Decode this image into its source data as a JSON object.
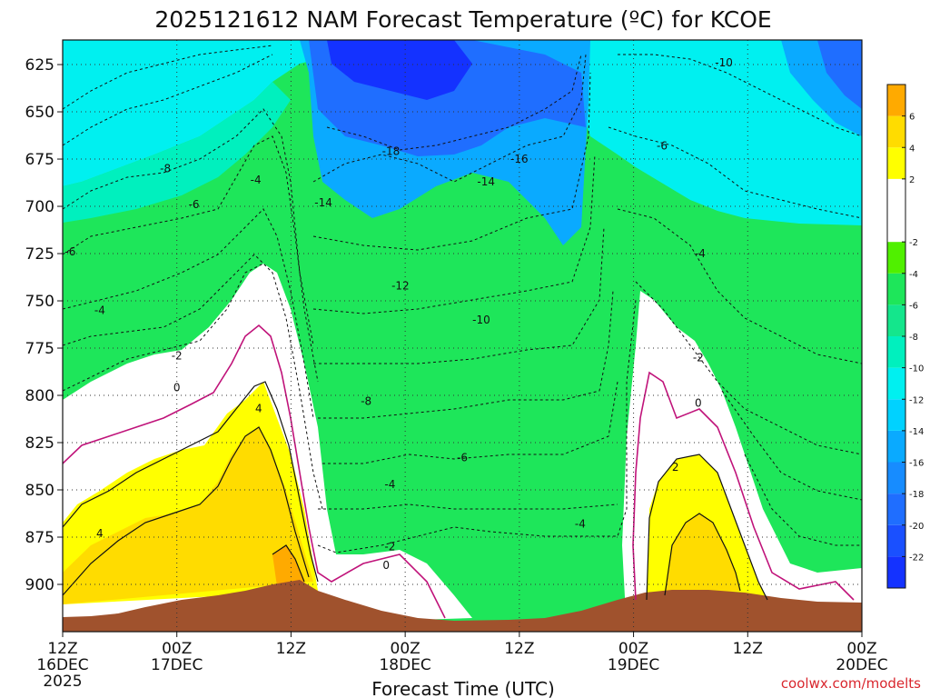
{
  "chart_data": {
    "type": "heatmap",
    "title": "2025121612 NAM Forecast Temperature (ºC) for KCOE",
    "xlabel": "Forecast Time (UTC)",
    "ylabel": "",
    "x_ticks": [
      {
        "hour": 0,
        "line1": "12Z",
        "line2": "16DEC",
        "line3": "2025"
      },
      {
        "hour": 12,
        "line1": "00Z",
        "line2": "17DEC",
        "line3": ""
      },
      {
        "hour": 24,
        "line1": "12Z",
        "line2": "",
        "line3": ""
      },
      {
        "hour": 36,
        "line1": "00Z",
        "line2": "18DEC",
        "line3": ""
      },
      {
        "hour": 48,
        "line1": "12Z",
        "line2": "",
        "line3": ""
      },
      {
        "hour": 60,
        "line1": "00Z",
        "line2": "19DEC",
        "line3": ""
      },
      {
        "hour": 72,
        "line1": "12Z",
        "line2": "",
        "line3": ""
      },
      {
        "hour": 84,
        "line1": "00Z",
        "line2": "20DEC",
        "line3": ""
      }
    ],
    "xlim_hours": [
      0,
      84
    ],
    "y_ticks": [
      625,
      650,
      675,
      700,
      725,
      750,
      775,
      800,
      825,
      850,
      875,
      900
    ],
    "ylim_hpa": [
      612,
      925
    ],
    "grid": true,
    "colorbar": {
      "placement": "right",
      "bands": [
        {
          "lo": -24,
          "hi": -22,
          "color": "#1432ff"
        },
        {
          "lo": -22,
          "hi": -20,
          "color": "#1a50ff"
        },
        {
          "lo": -20,
          "hi": -18,
          "color": "#1f6eff"
        },
        {
          "lo": -18,
          "hi": -16,
          "color": "#178cff"
        },
        {
          "lo": -16,
          "hi": -14,
          "color": "#0aaaff"
        },
        {
          "lo": -14,
          "hi": -12,
          "color": "#00d2ff"
        },
        {
          "lo": -12,
          "hi": -10,
          "color": "#00f0f0"
        },
        {
          "lo": -10,
          "hi": -8,
          "color": "#00f0be"
        },
        {
          "lo": -8,
          "hi": -6,
          "color": "#14e68c"
        },
        {
          "lo": -6,
          "hi": -4,
          "color": "#1ee65a"
        },
        {
          "lo": -4,
          "hi": -2,
          "color": "#50f000"
        },
        {
          "lo": -2,
          "hi": 2,
          "color": "#ffffff"
        },
        {
          "lo": 2,
          "hi": 4,
          "color": "#ffff00"
        },
        {
          "lo": 4,
          "hi": 6,
          "color": "#ffdc00"
        },
        {
          "lo": 6,
          "hi": 8,
          "color": "#ffaa00"
        }
      ],
      "tick_labels": [
        "6",
        "4",
        "2",
        "-2",
        "-4",
        "-6",
        "-8",
        "-10",
        "-12",
        "-14",
        "-16",
        "-18",
        "-20",
        "-22"
      ]
    },
    "contour_labels": [
      {
        "text": "-10",
        "hour": 69.5,
        "hpa": 624
      },
      {
        "text": "-18",
        "hour": 34.5,
        "hpa": 671
      },
      {
        "text": "-16",
        "hour": 48.0,
        "hpa": 675
      },
      {
        "text": "-6",
        "hour": 63.0,
        "hpa": 668
      },
      {
        "text": "-8",
        "hour": 10.8,
        "hpa": 680
      },
      {
        "text": "-4",
        "hour": 20.3,
        "hpa": 686
      },
      {
        "text": "-14",
        "hour": 44.5,
        "hpa": 687
      },
      {
        "text": "-14",
        "hour": 27.4,
        "hpa": 698
      },
      {
        "text": "-6",
        "hour": 13.8,
        "hpa": 699
      },
      {
        "text": "-6",
        "hour": 0.8,
        "hpa": 724
      },
      {
        "text": "-4",
        "hour": 67.0,
        "hpa": 725
      },
      {
        "text": "-12",
        "hour": 35.5,
        "hpa": 742
      },
      {
        "text": "-4",
        "hour": 3.9,
        "hpa": 755
      },
      {
        "text": "-10",
        "hour": 44.0,
        "hpa": 760
      },
      {
        "text": "-2",
        "hour": 12.0,
        "hpa": 779
      },
      {
        "text": "-2",
        "hour": 66.8,
        "hpa": 780
      },
      {
        "text": "0",
        "hour": 12.0,
        "hpa": 796
      },
      {
        "text": "0",
        "hour": 66.8,
        "hpa": 804
      },
      {
        "text": "-8",
        "hour": 31.9,
        "hpa": 803
      },
      {
        "text": "4",
        "hour": 20.6,
        "hpa": 807
      },
      {
        "text": "-6",
        "hour": 42.0,
        "hpa": 833
      },
      {
        "text": "2",
        "hour": 64.4,
        "hpa": 838
      },
      {
        "text": "-4",
        "hour": 34.4,
        "hpa": 847
      },
      {
        "text": "4",
        "hour": 3.9,
        "hpa": 873
      },
      {
        "text": "-4",
        "hour": 54.4,
        "hpa": 868
      },
      {
        "text": "-2",
        "hour": 34.4,
        "hpa": 880
      },
      {
        "text": "0",
        "hour": 34.0,
        "hpa": 890
      }
    ],
    "annotations": [
      "coolwx.com/modelts"
    ]
  }
}
